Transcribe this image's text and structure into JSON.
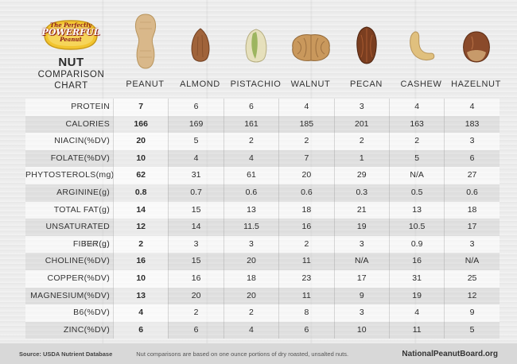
{
  "logo": {
    "line1": "The Perfectly",
    "line2": "POWERFUL",
    "line3": "Peanut"
  },
  "title": {
    "main": "NUT",
    "sub1": "COMPARISON",
    "sub2": "CHART"
  },
  "nuts": [
    {
      "name": "PEANUT",
      "icon": "peanut-icon"
    },
    {
      "name": "ALMOND",
      "icon": "almond-icon"
    },
    {
      "name": "PISTACHIO",
      "icon": "pistachio-icon"
    },
    {
      "name": "WALNUT",
      "icon": "walnut-icon"
    },
    {
      "name": "PECAN",
      "icon": "pecan-icon"
    },
    {
      "name": "CASHEW",
      "icon": "cashew-icon"
    },
    {
      "name": "HAZELNUT",
      "icon": "hazelnut-icon"
    }
  ],
  "rows": [
    {
      "label": "PROTEIN",
      "values": [
        "7",
        "6",
        "6",
        "4",
        "3",
        "4",
        "4"
      ]
    },
    {
      "label": "CALORIES",
      "values": [
        "166",
        "169",
        "161",
        "185",
        "201",
        "163",
        "183"
      ]
    },
    {
      "label": "NIACIN(%DV)",
      "values": [
        "20",
        "5",
        "2",
        "2",
        "2",
        "2",
        "3"
      ]
    },
    {
      "label": "FOLATE(%DV)",
      "values": [
        "10",
        "4",
        "4",
        "7",
        "1",
        "5",
        "6"
      ]
    },
    {
      "label": "PHYTOSTEROLS(mg)",
      "values": [
        "62",
        "31",
        "61",
        "20",
        "29",
        "N/A",
        "27"
      ]
    },
    {
      "label": "ARGININE(g)",
      "values": [
        "0.8",
        "0.7",
        "0.6",
        "0.6",
        "0.3",
        "0.5",
        "0.6"
      ]
    },
    {
      "label": "TOTAL FAT(g)",
      "values": [
        "14",
        "15",
        "13",
        "18",
        "21",
        "13",
        "18"
      ]
    },
    {
      "label": "UNSATURATED FAT(g)",
      "values": [
        "12",
        "14",
        "11.5",
        "16",
        "19",
        "10.5",
        "17"
      ]
    },
    {
      "label": "FIBER(g)",
      "values": [
        "2",
        "3",
        "3",
        "2",
        "3",
        "0.9",
        "3"
      ]
    },
    {
      "label": "CHOLINE(%DV)",
      "values": [
        "16",
        "15",
        "20",
        "11",
        "N/A",
        "16",
        "N/A"
      ]
    },
    {
      "label": "COPPER(%DV)",
      "values": [
        "10",
        "16",
        "18",
        "23",
        "17",
        "31",
        "25"
      ]
    },
    {
      "label": "MAGNESIUM(%DV)",
      "values": [
        "13",
        "20",
        "20",
        "11",
        "9",
        "19",
        "12"
      ]
    },
    {
      "label": "B6(%DV)",
      "values": [
        "4",
        "2",
        "2",
        "8",
        "3",
        "4",
        "9"
      ]
    },
    {
      "label": "ZINC(%DV)",
      "values": [
        "6",
        "6",
        "4",
        "6",
        "10",
        "11",
        "5"
      ]
    }
  ],
  "footer": {
    "source": "Source: USDA Nutrient Database",
    "note": "Nut comparisons are based on one ounce portions of dry roasted, unsalted nuts.",
    "url": "NationalPeanutBoard.org"
  },
  "colors": {
    "logo_gold": "#f2c530",
    "logo_red": "#8a1a1a",
    "peanut": "#d9b88a",
    "almond": "#a0633a",
    "walnut": "#c9985c",
    "pecan": "#7a3e20",
    "cashew": "#e0c07e",
    "hazelnut": "#8a4a2a",
    "pistachio": "#d8d4a8"
  }
}
